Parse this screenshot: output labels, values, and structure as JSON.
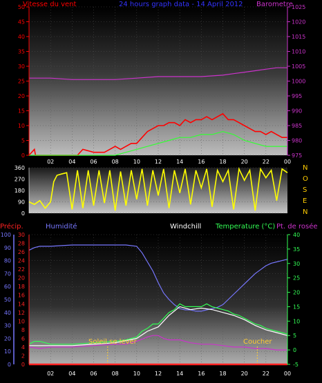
{
  "colors": {
    "background": "#000000",
    "wind_axis": "#ff0000",
    "baro_axis": "#cc33cc",
    "title": "#3333ff",
    "gust": "#ff0000",
    "wind_avg": "#33ff33",
    "pressure": "#cc33cc",
    "direction": "#ffff00",
    "direction_label": "#ffcc00",
    "precip": "#ff2222",
    "humidity": "#7777ff",
    "temperature": "#33ff55",
    "windchill": "#ffffff",
    "dewpoint": "#cc33cc",
    "sun_marker": "#ffcc33",
    "tick_text": "#ffffff"
  },
  "chart_data": [
    {
      "type": "line",
      "title": "24 hours graph data - 14 April 2012",
      "y_left_label": "Vitesse du vent",
      "y_right_label": "Barometre",
      "x_ticks": [
        "02",
        "04",
        "06",
        "08",
        "10",
        "12",
        "14",
        "16",
        "18",
        "20",
        "22",
        "00"
      ],
      "y_left_ticks": [
        0,
        5,
        10,
        15,
        20,
        25,
        30,
        35,
        40,
        45,
        50
      ],
      "y_right_ticks": [
        975,
        980,
        985,
        990,
        995,
        1000,
        1005,
        1010,
        1015,
        1020,
        1025
      ],
      "ylim_left": [
        0,
        50
      ],
      "ylim_right": [
        975,
        1025
      ],
      "xlim": [
        0,
        24
      ],
      "grid": true,
      "series": [
        {
          "key": "gust",
          "values_x": [
            0,
            0.5,
            0.6,
            1,
            2,
            3,
            4,
            4.5,
            5,
            6,
            7,
            7.5,
            8,
            8.5,
            9,
            9.5,
            10,
            10.5,
            11,
            11.5,
            12,
            12.5,
            13,
            13.5,
            14,
            14.5,
            15,
            15.5,
            16,
            16.5,
            17,
            17.5,
            18,
            18.5,
            19,
            19.5,
            20,
            20.5,
            21,
            21.5,
            22,
            22.5,
            23,
            23.5,
            24
          ],
          "values_y": [
            0,
            2,
            0,
            0,
            0,
            0,
            0,
            0,
            2,
            1,
            1,
            2,
            3,
            2,
            3,
            4,
            4,
            6,
            8,
            9,
            10,
            10,
            11,
            11,
            10,
            12,
            11,
            12,
            12,
            13,
            12,
            13,
            14,
            12,
            12,
            11,
            10,
            9,
            8,
            8,
            7,
            8,
            7,
            6,
            6
          ]
        },
        {
          "key": "wind_avg",
          "values_x": [
            0,
            8,
            9,
            10,
            11,
            12,
            13,
            14,
            15,
            16,
            17,
            18,
            19,
            20,
            21,
            22,
            23,
            24
          ],
          "values_y": [
            0,
            0,
            1,
            2,
            3,
            4,
            5,
            6,
            6,
            7,
            7,
            8,
            7,
            5,
            4,
            3,
            3,
            3
          ]
        },
        {
          "key": "pressure",
          "values_x": [
            0,
            2,
            4,
            6,
            8,
            10,
            12,
            14,
            16,
            18,
            19,
            20,
            21,
            22,
            23,
            24
          ],
          "values_y": [
            1001,
            1001,
            1000.5,
            1000.5,
            1000.5,
            1001,
            1001.5,
            1001.5,
            1001.5,
            1002,
            1002.5,
            1003,
            1003.5,
            1004,
            1004.5,
            1004.5
          ]
        }
      ]
    },
    {
      "type": "line",
      "title": "",
      "direction_labels": [
        "N",
        "O",
        "S",
        "E",
        "N"
      ],
      "y_left_ticks": [
        0,
        90,
        180,
        270,
        360
      ],
      "ylim": [
        0,
        360
      ],
      "xlim": [
        0,
        24
      ],
      "series": [
        {
          "key": "direction",
          "values_x": [
            0,
            0.5,
            1,
            1.5,
            2,
            2.3,
            2.6,
            3,
            3.5,
            4,
            4.5,
            5,
            5.5,
            6,
            6.5,
            7,
            7.5,
            8,
            8.5,
            9,
            9.5,
            10,
            10.5,
            11,
            11.5,
            12,
            12.5,
            13,
            13.5,
            14,
            14.5,
            15,
            15.5,
            16,
            16.5,
            17,
            17.5,
            18,
            18.5,
            19,
            19.5,
            20,
            20.5,
            21,
            21.5,
            22,
            22.5,
            23,
            23.5,
            24
          ],
          "values_y": [
            90,
            70,
            100,
            40,
            90,
            250,
            300,
            310,
            320,
            30,
            340,
            40,
            340,
            60,
            340,
            80,
            340,
            20,
            330,
            60,
            340,
            110,
            350,
            60,
            340,
            140,
            350,
            40,
            340,
            160,
            350,
            70,
            340,
            200,
            350,
            50,
            340,
            250,
            340,
            30,
            350,
            260,
            340,
            20,
            350,
            280,
            340,
            100,
            350,
            320
          ]
        }
      ]
    },
    {
      "type": "line",
      "title": "",
      "labels": {
        "precip": "Précip.",
        "humidity": "Humidité",
        "windchill": "Windchill",
        "temperature": "Temperature (°C)",
        "dewpoint": "Pt. de rosée"
      },
      "sunrise_label": "Soleil se lever",
      "sunset_label": "Coucher",
      "sunrise_hour": 7.3,
      "sunset_hour": 21.2,
      "x_ticks": [
        "02",
        "04",
        "06",
        "08",
        "10",
        "12",
        "14",
        "16",
        "18",
        "20",
        "22",
        "00"
      ],
      "humidity_ticks": [
        0,
        10,
        20,
        30,
        40,
        50,
        60,
        70,
        80,
        90,
        100
      ],
      "precip_ticks": [
        0,
        2,
        4,
        6,
        8,
        10,
        12,
        14,
        16,
        18,
        20,
        22,
        24,
        26,
        28,
        30
      ],
      "temp_ticks": [
        -5,
        0,
        5,
        10,
        15,
        20,
        25,
        30,
        35,
        40
      ],
      "ylim_humidity": [
        0,
        100
      ],
      "ylim_temp": [
        -5,
        40
      ],
      "xlim": [
        0,
        24
      ],
      "grid": true,
      "series": [
        {
          "key": "humidity",
          "values_x": [
            0,
            0.5,
            1,
            2,
            4,
            6,
            8,
            9,
            10,
            10.5,
            11,
            11.5,
            12,
            12.5,
            13,
            13.5,
            14,
            14.5,
            15,
            15.5,
            16,
            16.5,
            17,
            17.5,
            18,
            18.5,
            19,
            19.5,
            20,
            20.5,
            21,
            21.5,
            22,
            22.5,
            23,
            23.5,
            24
          ],
          "values_y": [
            88,
            90,
            91,
            91,
            92,
            92,
            92,
            92,
            91,
            86,
            79,
            72,
            63,
            55,
            50,
            46,
            43,
            42,
            42,
            41,
            41,
            42,
            43,
            44,
            46,
            50,
            54,
            58,
            62,
            66,
            70,
            73,
            76,
            78,
            79,
            80,
            81
          ]
        },
        {
          "key": "temperature",
          "values_x": [
            0,
            0.5,
            1,
            2,
            4,
            6,
            8,
            9,
            10,
            10.5,
            11,
            11.5,
            12,
            12.5,
            13,
            13.5,
            14,
            14.5,
            15,
            15.5,
            16,
            16.5,
            17,
            17.5,
            18,
            18.5,
            19,
            19.5,
            20,
            20.5,
            21,
            21.5,
            22,
            22.5,
            23,
            23.5,
            24
          ],
          "values_y": [
            2,
            3,
            3,
            2,
            2,
            2.5,
            3,
            3.5,
            4.5,
            6.5,
            7.5,
            9,
            9,
            11,
            13,
            14,
            16,
            15,
            15,
            15,
            15,
            16,
            15,
            14.5,
            14,
            13.5,
            12.5,
            12,
            11,
            10,
            9,
            8.5,
            7.5,
            7,
            6.5,
            6,
            5.5
          ]
        },
        {
          "key": "windchill",
          "values_x": [
            0,
            2,
            4,
            6,
            8,
            10,
            11,
            12,
            13,
            14,
            15,
            16,
            17,
            18,
            19,
            20,
            21,
            22,
            23,
            24
          ],
          "values_y": [
            1.5,
            1.5,
            1.5,
            2,
            2.5,
            4,
            6.5,
            8,
            12,
            15,
            14,
            14.5,
            14,
            13,
            12,
            10.5,
            8.5,
            7,
            6,
            5
          ]
        },
        {
          "key": "dewpoint",
          "values_x": [
            0,
            1,
            2,
            4,
            6,
            8,
            9,
            10,
            11,
            11.5,
            12,
            12.5,
            13,
            14,
            15,
            16,
            17,
            18,
            19,
            20,
            21,
            22,
            23,
            24
          ],
          "values_y": [
            1,
            0.5,
            1,
            1,
            1.5,
            2,
            2,
            3,
            4.5,
            5,
            5,
            4,
            3.5,
            3.5,
            2.5,
            2,
            2,
            1.5,
            1,
            1,
            0.5,
            0.5,
            0,
            0
          ]
        },
        {
          "key": "precip",
          "values_x": [
            0,
            24
          ],
          "values_y": [
            0,
            0
          ]
        }
      ]
    }
  ]
}
